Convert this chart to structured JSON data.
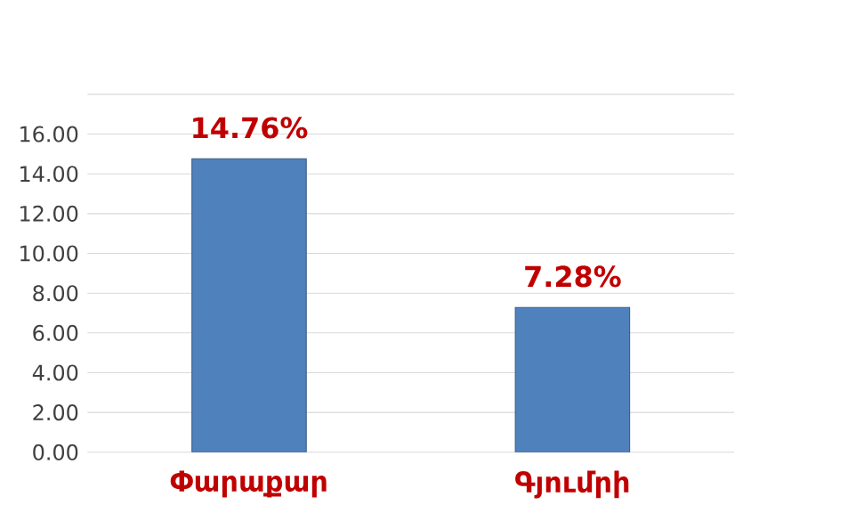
{
  "chart_data": {
    "type": "bar",
    "categories": [
      "Փարաքար",
      "Գյումրի"
    ],
    "values": [
      14.76,
      7.28
    ],
    "value_labels": [
      "14.76%",
      "7.28%"
    ],
    "color": "#4f81bd",
    "ylim": [
      0,
      18
    ],
    "yticks": [
      {
        "value": 0,
        "label": "0.00"
      },
      {
        "value": 2,
        "label": "2.00"
      },
      {
        "value": 4,
        "label": "4.00"
      },
      {
        "value": 6,
        "label": "6.00"
      },
      {
        "value": 8,
        "label": "8.00"
      },
      {
        "value": 10,
        "label": "10.00"
      },
      {
        "value": 12,
        "label": "12.00"
      },
      {
        "value": 14,
        "label": "14.00"
      },
      {
        "value": 16,
        "label": "16.00"
      },
      {
        "value": 18,
        "label": null
      }
    ],
    "grid": "y"
  }
}
